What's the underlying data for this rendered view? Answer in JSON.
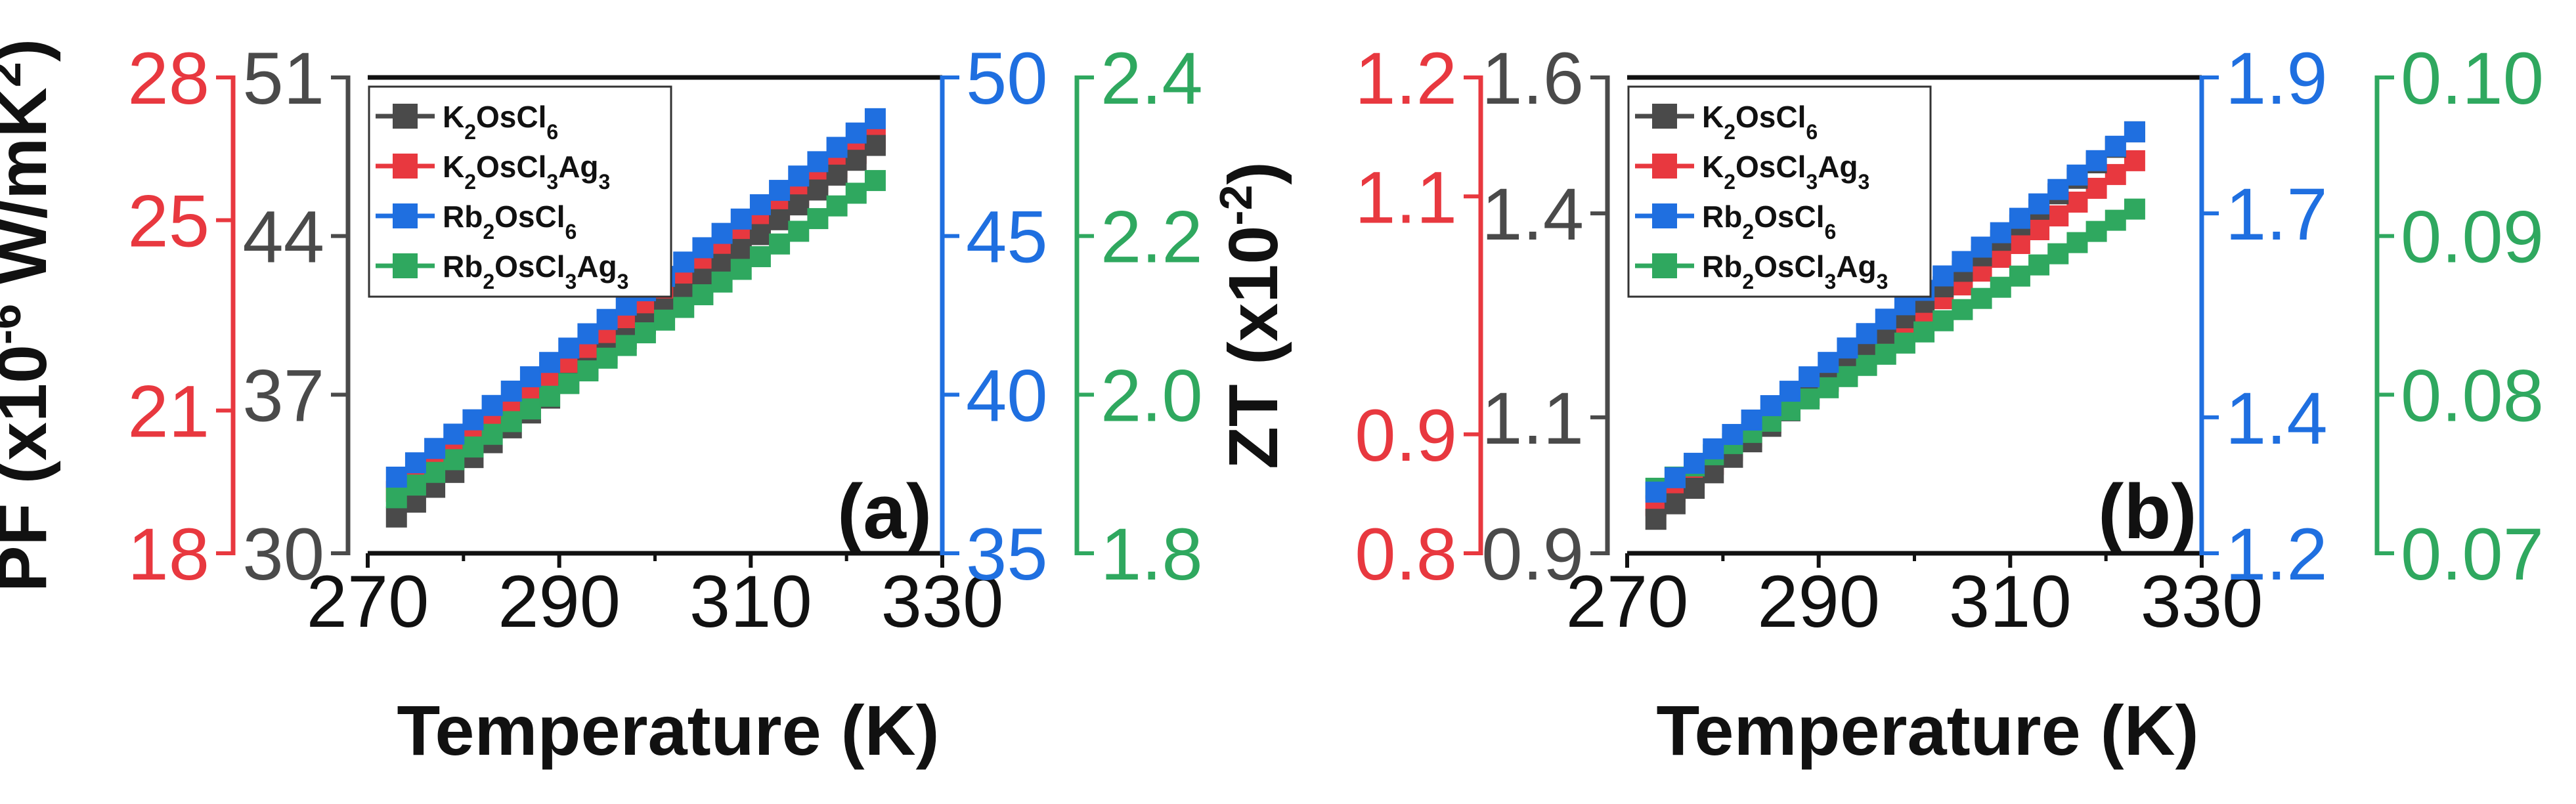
{
  "colors": {
    "black": "#4a4a4a",
    "red": "#e8383f",
    "blue": "#1f6fe0",
    "green": "#2fa85f"
  },
  "chart_data": [
    {
      "type": "scatter",
      "panel_label": "(a)",
      "xlabel": "Temperature (K)",
      "x_ticks": [
        "270",
        "290",
        "310",
        "330"
      ],
      "xlim": [
        270,
        330
      ],
      "ylabel": "PF (x10⁻⁶ W/mK²)",
      "ylabel_parts": {
        "pre": "PF (x10",
        "sup1": "-6",
        "mid": " W/mK",
        "sup2": "2",
        "post": ")"
      },
      "axes": [
        {
          "id": "red",
          "ylim": [
            18,
            28
          ],
          "ticks": [
            "18",
            "21",
            "25",
            "28"
          ]
        },
        {
          "id": "black",
          "ylim": [
            30,
            51
          ],
          "ticks": [
            "30",
            "37",
            "44",
            "51"
          ]
        },
        {
          "id": "blue",
          "ylim": [
            35,
            50
          ],
          "ticks": [
            "35",
            "40",
            "45",
            "50"
          ]
        },
        {
          "id": "green",
          "ylim": [
            1.8,
            2.4
          ],
          "ticks": [
            "1.8",
            "2.0",
            "2.2",
            "2.4"
          ]
        }
      ],
      "legend": [
        {
          "pre": "K",
          "s1": "2",
          "mid": "OsCl",
          "s2": "6",
          "tail": "",
          "s3": "",
          "color": "black"
        },
        {
          "pre": "K",
          "s1": "2",
          "mid": "OsCl",
          "s2": "3",
          "tail": "Ag",
          "s3": "3",
          "color": "red"
        },
        {
          "pre": "Rb",
          "s1": "2",
          "mid": "OsCl",
          "s2": "6",
          "tail": "",
          "s3": "",
          "color": "blue"
        },
        {
          "pre": "Rb",
          "s1": "2",
          "mid": "OsCl",
          "s2": "3",
          "tail": "Ag",
          "s3": "3",
          "color": "green"
        }
      ],
      "series": [
        {
          "name": "K2OsCl6",
          "color": "black",
          "axis": "black",
          "x_start": 273,
          "x_end": 323,
          "y_start": 31.6,
          "y_end": 48.0
        },
        {
          "name": "K2OsCl3Ag3",
          "color": "red",
          "axis": "red",
          "x_start": 273,
          "x_end": 323,
          "y_start": 19.3,
          "y_end": 26.7
        },
        {
          "name": "Rb2OsCl6",
          "color": "blue",
          "axis": "blue",
          "x_start": 273,
          "x_end": 323,
          "y_start": 37.4,
          "y_end": 48.7
        },
        {
          "name": "Rb2OsCl3Ag3",
          "color": "green",
          "axis": "green",
          "x_start": 273,
          "x_end": 323,
          "y_start": 1.87,
          "y_end": 2.27
        }
      ]
    },
    {
      "type": "scatter",
      "panel_label": "(b)",
      "xlabel": "Temperature (K)",
      "x_ticks": [
        "270",
        "290",
        "310",
        "330"
      ],
      "xlim": [
        270,
        330
      ],
      "ylabel": "ZT (x10⁻²)",
      "ylabel_parts": {
        "pre": "ZT (x10",
        "sup1": "-2",
        "mid": "",
        "sup2": "",
        "post": ")"
      },
      "axes": [
        {
          "id": "red",
          "ylim": [
            0.8,
            1.2
          ],
          "ticks": [
            "0.8",
            "0.9",
            "1.1",
            "1.2"
          ]
        },
        {
          "id": "black",
          "ylim": [
            0.9,
            1.6
          ],
          "ticks": [
            "0.9",
            "1.1",
            "1.4",
            "1.6"
          ]
        },
        {
          "id": "blue",
          "ylim": [
            1.2,
            1.9
          ],
          "ticks": [
            "1.2",
            "1.4",
            "1.7",
            "1.9"
          ]
        },
        {
          "id": "green",
          "ylim": [
            0.07,
            0.1
          ],
          "ticks": [
            "0.07",
            "0.08",
            "0.09",
            "0.10"
          ]
        }
      ],
      "legend": [
        {
          "pre": "K",
          "s1": "2",
          "mid": "OsCl",
          "s2": "6",
          "tail": "",
          "s3": "",
          "color": "black"
        },
        {
          "pre": "K",
          "s1": "2",
          "mid": "OsCl",
          "s2": "3",
          "tail": "Ag",
          "s3": "3",
          "color": "red"
        },
        {
          "pre": "Rb",
          "s1": "2",
          "mid": "OsCl",
          "s2": "6",
          "tail": "",
          "s3": "",
          "color": "blue"
        },
        {
          "pre": "Rb",
          "s1": "2",
          "mid": "OsCl",
          "s2": "3",
          "tail": "Ag",
          "s3": "3",
          "color": "green"
        }
      ],
      "series": [
        {
          "name": "K2OsCl6",
          "color": "black",
          "axis": "black",
          "x_start": 273,
          "x_end": 323,
          "y_start": 0.95,
          "y_end": 1.52
        },
        {
          "name": "K2OsCl3Ag3",
          "color": "red",
          "axis": "red",
          "x_start": 273,
          "x_end": 323,
          "y_start": 0.84,
          "y_end": 1.13
        },
        {
          "name": "Rb2OsCl6",
          "color": "blue",
          "axis": "blue",
          "x_start": 273,
          "x_end": 323,
          "y_start": 1.29,
          "y_end": 1.82
        },
        {
          "name": "Rb2OsCl3Ag3",
          "color": "green",
          "axis": "green",
          "x_start": 273,
          "x_end": 323,
          "y_start": 0.0741,
          "y_end": 0.0917
        }
      ]
    }
  ]
}
